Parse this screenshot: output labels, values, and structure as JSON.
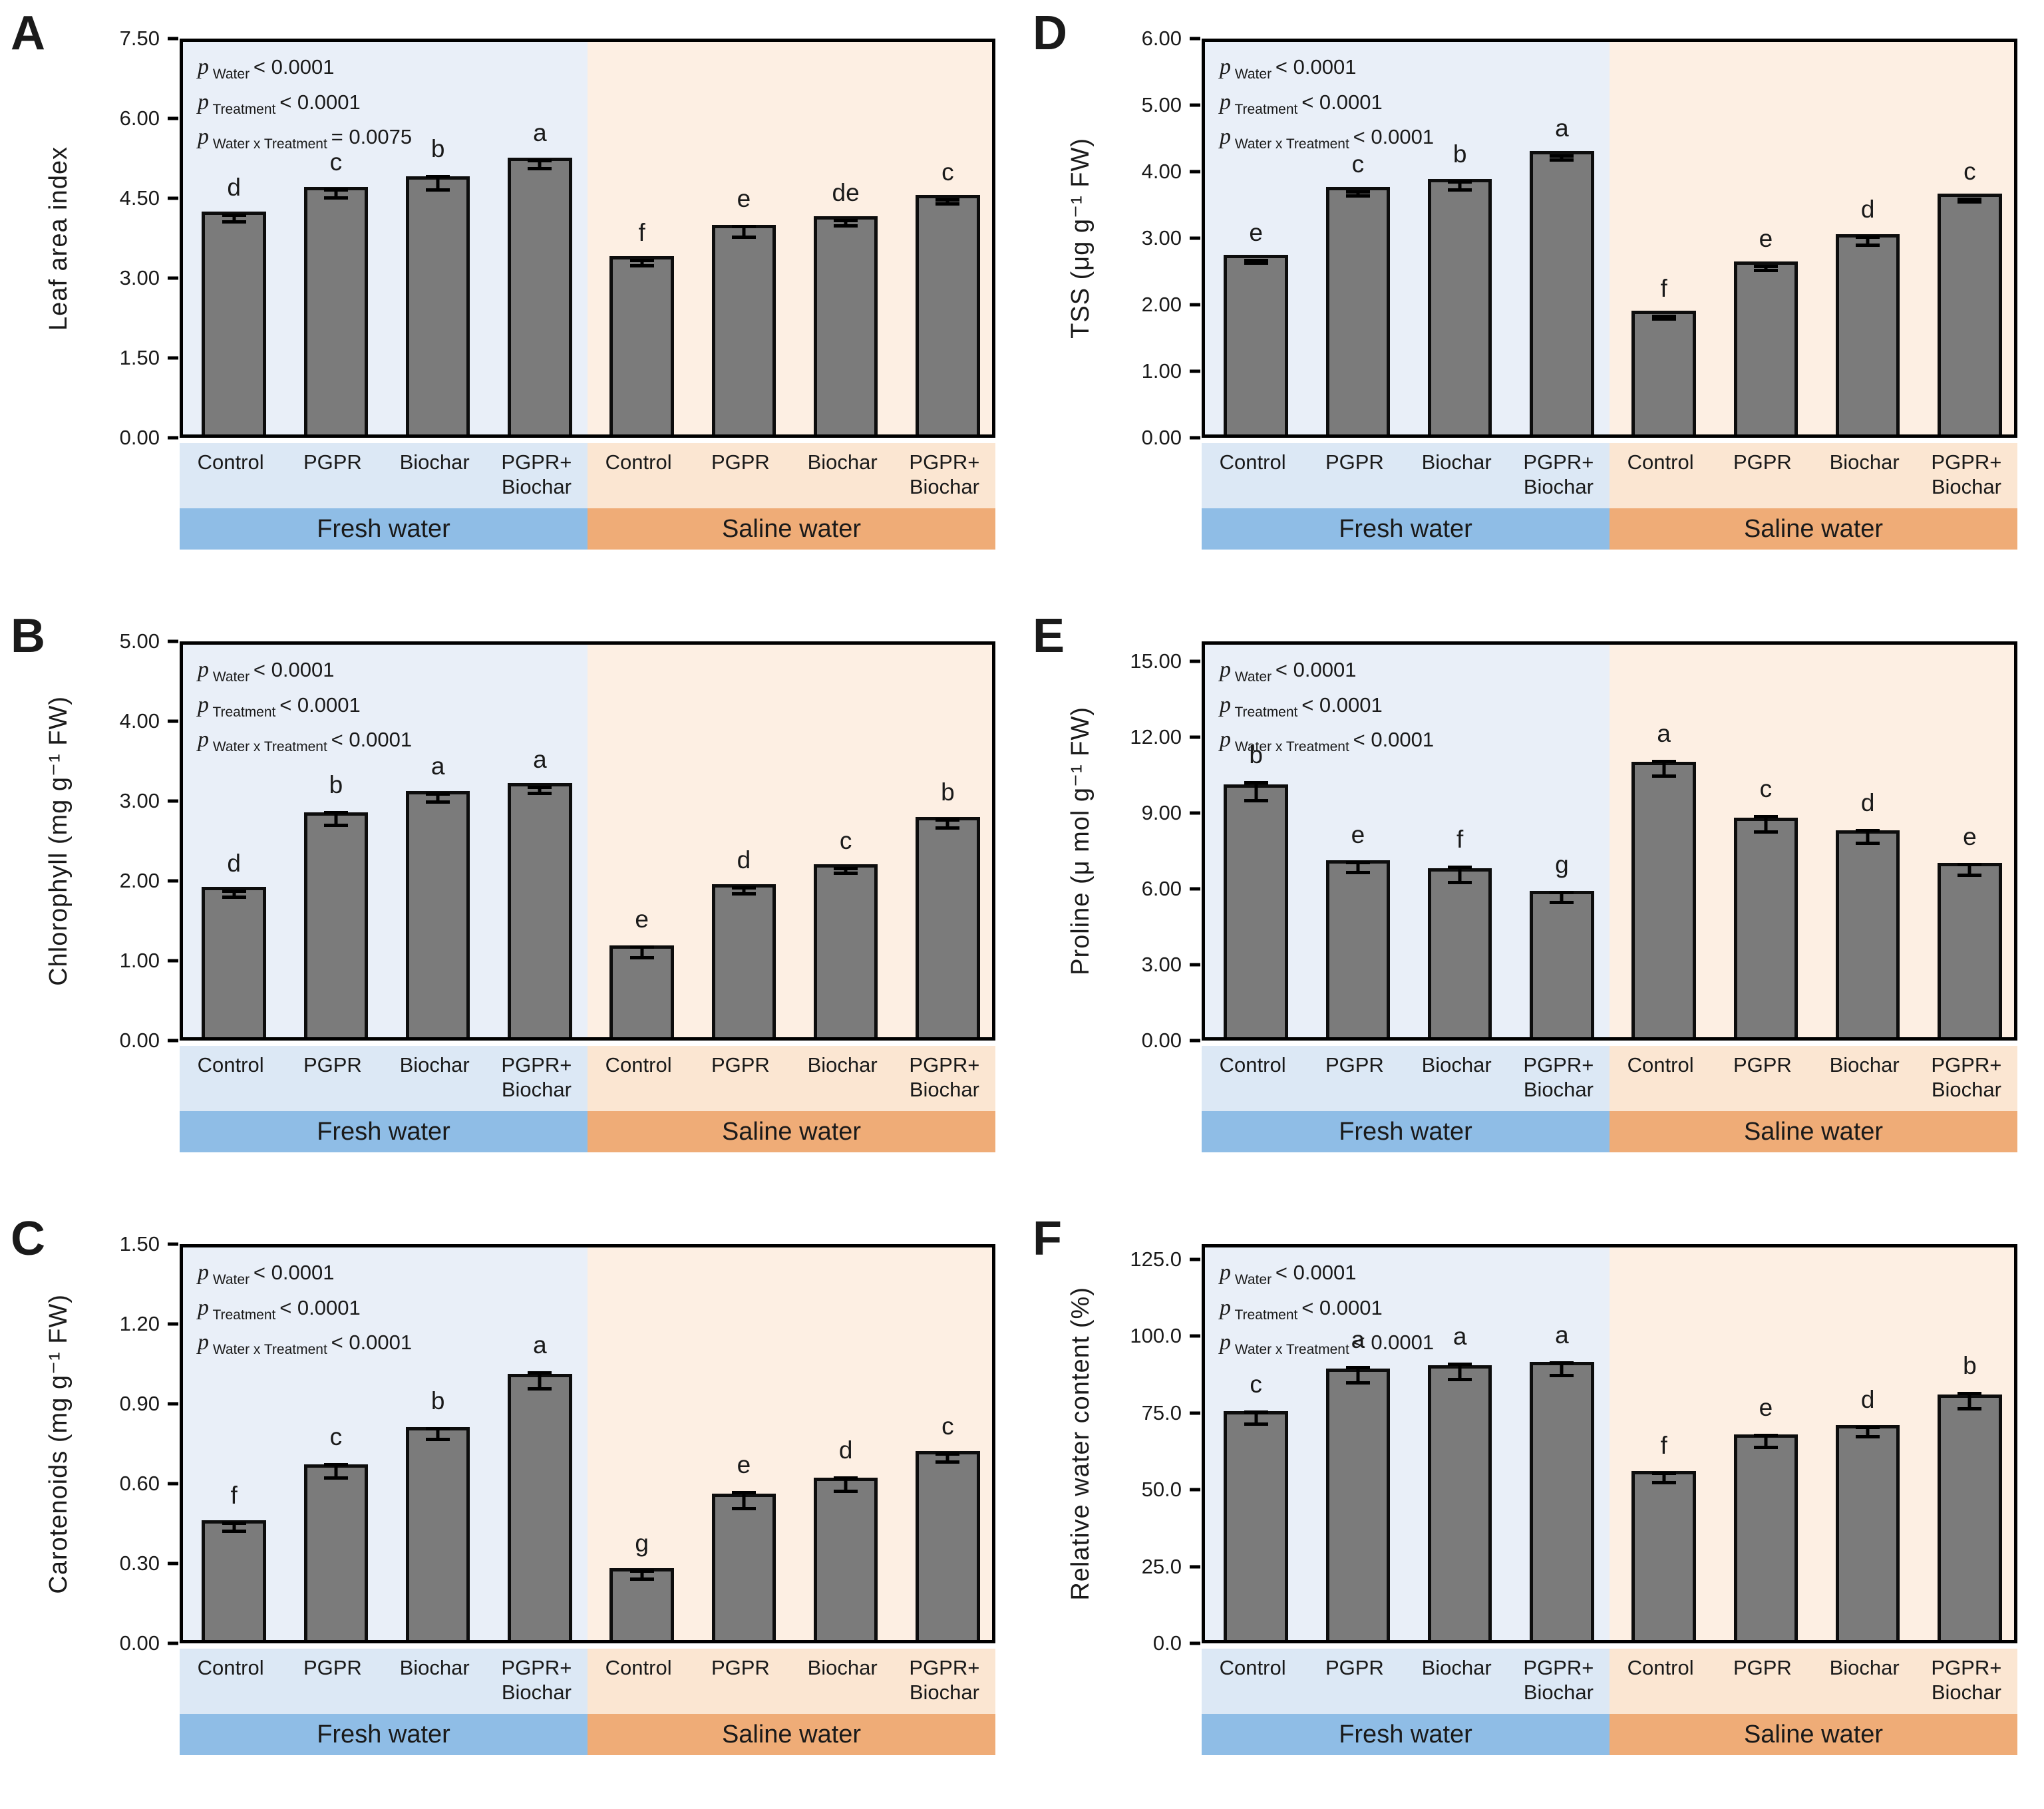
{
  "figure": {
    "treatment_labels": [
      "Control",
      "PGPR",
      "Biochar",
      "PGPR+\nBiochar"
    ],
    "water_groups": [
      "Fresh water",
      "Saline water"
    ],
    "colors": {
      "bar_fill": "#7b7b7b",
      "bar_border": "#0d0d0d",
      "fresh_plot_bg": "#e9eff8",
      "saline_plot_bg": "#fdefe3",
      "fresh_label_strip_bg": "#dce8f5",
      "saline_label_strip_bg": "#fbe6d2",
      "fresh_band_bg": "#8fbde6",
      "saline_band_bg": "#efac77"
    }
  },
  "chart_data": [
    {
      "type": "bar",
      "panel_letter": "A",
      "ylabel": "Leaf area index",
      "ylim": [
        0,
        7.5
      ],
      "yticks": [
        "0.00",
        "1.50",
        "3.00",
        "4.50",
        "6.00",
        "7.50"
      ],
      "grid": false,
      "p_values": [
        {
          "sub": "Water",
          "rest": "< 0.0001"
        },
        {
          "sub": "Treatment",
          "rest": "< 0.0001"
        },
        {
          "sub": "Water x Treatment",
          "rest": "= 0.0075"
        }
      ],
      "groups": [
        {
          "water": "Fresh water",
          "bars": [
            {
              "treatment": "Control",
              "value": 4.19,
              "error": 0.06,
              "letter": "d"
            },
            {
              "treatment": "PGPR",
              "value": 4.65,
              "error": 0.08,
              "letter": "c"
            },
            {
              "treatment": "Biochar",
              "value": 4.85,
              "error": 0.12,
              "letter": "b"
            },
            {
              "treatment": "PGPR+Biochar",
              "value": 5.2,
              "error": 0.07,
              "letter": "a"
            }
          ]
        },
        {
          "water": "Saline water",
          "bars": [
            {
              "treatment": "Control",
              "value": 3.35,
              "error": 0.05,
              "letter": "f"
            },
            {
              "treatment": "PGPR",
              "value": 3.94,
              "error": 0.1,
              "letter": "e"
            },
            {
              "treatment": "Biochar",
              "value": 4.1,
              "error": 0.05,
              "letter": "de"
            },
            {
              "treatment": "PGPR+Biochar",
              "value": 4.5,
              "error": 0.04,
              "letter": "c"
            }
          ]
        }
      ]
    },
    {
      "type": "bar",
      "panel_letter": "D",
      "ylabel": "TSS (μg g⁻¹ FW)",
      "ylim": [
        0,
        6
      ],
      "yticks": [
        "0.00",
        "1.00",
        "2.00",
        "3.00",
        "4.00",
        "5.00",
        "6.00"
      ],
      "grid": false,
      "p_values": [
        {
          "sub": "Water",
          "rest": "< 0.0001"
        },
        {
          "sub": "Treatment",
          "rest": "< 0.0001"
        },
        {
          "sub": "Water x Treatment",
          "rest": "< 0.0001"
        }
      ],
      "groups": [
        {
          "water": "Fresh water",
          "bars": [
            {
              "treatment": "Control",
              "value": 2.7,
              "error": 0.02,
              "letter": "e"
            },
            {
              "treatment": "PGPR",
              "value": 3.72,
              "error": 0.03,
              "letter": "c"
            },
            {
              "treatment": "Biochar",
              "value": 3.84,
              "error": 0.06,
              "letter": "b"
            },
            {
              "treatment": "PGPR+Biochar",
              "value": 4.26,
              "error": 0.03,
              "letter": "a"
            }
          ]
        },
        {
          "water": "Saline water",
          "bars": [
            {
              "treatment": "Control",
              "value": 1.86,
              "error": 0.02,
              "letter": "f"
            },
            {
              "treatment": "PGPR",
              "value": 2.6,
              "error": 0.03,
              "letter": "e"
            },
            {
              "treatment": "Biochar",
              "value": 3.01,
              "error": 0.06,
              "letter": "d"
            },
            {
              "treatment": "PGPR+Biochar",
              "value": 3.62,
              "error": 0.02,
              "letter": "c"
            }
          ]
        }
      ]
    },
    {
      "type": "bar",
      "panel_letter": "B",
      "ylabel": "Chlorophyll (mg g⁻¹ FW)",
      "ylim": [
        0,
        5
      ],
      "yticks": [
        "0.00",
        "1.00",
        "2.00",
        "3.00",
        "4.00",
        "5.00"
      ],
      "grid": false,
      "p_values": [
        {
          "sub": "Water",
          "rest": "< 0.0001"
        },
        {
          "sub": "Treatment",
          "rest": "< 0.0001"
        },
        {
          "sub": "Water x Treatment",
          "rest": "< 0.0001"
        }
      ],
      "groups": [
        {
          "water": "Fresh water",
          "bars": [
            {
              "treatment": "Control",
              "value": 1.88,
              "error": 0.04,
              "letter": "d"
            },
            {
              "treatment": "PGPR",
              "value": 2.82,
              "error": 0.08,
              "letter": "b"
            },
            {
              "treatment": "Biochar",
              "value": 3.08,
              "error": 0.05,
              "letter": "a"
            },
            {
              "treatment": "PGPR+Biochar",
              "value": 3.18,
              "error": 0.04,
              "letter": "a"
            }
          ]
        },
        {
          "water": "Saline water",
          "bars": [
            {
              "treatment": "Control",
              "value": 1.15,
              "error": 0.07,
              "letter": "e"
            },
            {
              "treatment": "PGPR",
              "value": 1.92,
              "error": 0.04,
              "letter": "d"
            },
            {
              "treatment": "Biochar",
              "value": 2.17,
              "error": 0.03,
              "letter": "c"
            },
            {
              "treatment": "PGPR+Biochar",
              "value": 2.76,
              "error": 0.05,
              "letter": "b"
            }
          ]
        }
      ]
    },
    {
      "type": "bar",
      "panel_letter": "E",
      "ylabel": "Proline (μ mol g⁻¹ FW)",
      "ylim": [
        0,
        15.8
      ],
      "yticks": [
        "0.00",
        "3.00",
        "6.00",
        "9.00",
        "12.00",
        "15.00"
      ],
      "grid": false,
      "p_values": [
        {
          "sub": "Water",
          "rest": "< 0.0001"
        },
        {
          "sub": "Treatment",
          "rest": "< 0.0001"
        },
        {
          "sub": "Water x Treatment",
          "rest": "< 0.0001"
        }
      ],
      "groups": [
        {
          "water": "Fresh water",
          "bars": [
            {
              "treatment": "Control",
              "value": 10.0,
              "error": 0.35,
              "letter": "b"
            },
            {
              "treatment": "PGPR",
              "value": 7.0,
              "error": 0.2,
              "letter": "e"
            },
            {
              "treatment": "Biochar",
              "value": 6.7,
              "error": 0.3,
              "letter": "f"
            },
            {
              "treatment": "PGPR+Biochar",
              "value": 5.8,
              "error": 0.2,
              "letter": "g"
            }
          ]
        },
        {
          "water": "Saline water",
          "bars": [
            {
              "treatment": "Control",
              "value": 10.9,
              "error": 0.3,
              "letter": "a"
            },
            {
              "treatment": "PGPR",
              "value": 8.7,
              "error": 0.3,
              "letter": "c"
            },
            {
              "treatment": "Biochar",
              "value": 8.2,
              "error": 0.25,
              "letter": "d"
            },
            {
              "treatment": "PGPR+Biochar",
              "value": 6.9,
              "error": 0.2,
              "letter": "e"
            }
          ]
        }
      ]
    },
    {
      "type": "bar",
      "panel_letter": "C",
      "ylabel": "Carotenoids (mg g⁻¹ FW)",
      "ylim": [
        0,
        1.5
      ],
      "yticks": [
        "0.00",
        "0.30",
        "0.60",
        "0.90",
        "1.20",
        "1.50"
      ],
      "grid": false,
      "p_values": [
        {
          "sub": "Water",
          "rest": "< 0.0001"
        },
        {
          "sub": "Treatment",
          "rest": "< 0.0001"
        },
        {
          "sub": "Water x Treatment",
          "rest": "< 0.0001"
        }
      ],
      "groups": [
        {
          "water": "Fresh water",
          "bars": [
            {
              "treatment": "Control",
              "value": 0.45,
              "error": 0.015,
              "letter": "f"
            },
            {
              "treatment": "PGPR",
              "value": 0.66,
              "error": 0.025,
              "letter": "c"
            },
            {
              "treatment": "Biochar",
              "value": 0.8,
              "error": 0.02,
              "letter": "b"
            },
            {
              "treatment": "PGPR+Biochar",
              "value": 1.0,
              "error": 0.03,
              "letter": "a"
            }
          ]
        },
        {
          "water": "Saline water",
          "bars": [
            {
              "treatment": "Control",
              "value": 0.27,
              "error": 0.015,
              "letter": "g"
            },
            {
              "treatment": "PGPR",
              "value": 0.55,
              "error": 0.03,
              "letter": "e"
            },
            {
              "treatment": "Biochar",
              "value": 0.61,
              "error": 0.025,
              "letter": "d"
            },
            {
              "treatment": "PGPR+Biochar",
              "value": 0.71,
              "error": 0.015,
              "letter": "c"
            }
          ]
        }
      ]
    },
    {
      "type": "bar",
      "panel_letter": "F",
      "ylabel": "Relative water content (%)",
      "ylim": [
        0,
        130
      ],
      "yticks": [
        "0.0",
        "25.0",
        "50.0",
        "75.0",
        "100.0",
        "125.0"
      ],
      "grid": false,
      "p_values": [
        {
          "sub": "Water",
          "rest": "< 0.0001"
        },
        {
          "sub": "Treatment",
          "rest": "< 0.0001"
        },
        {
          "sub": "Water x Treatment",
          "rest": "< 0.0001"
        }
      ],
      "groups": [
        {
          "water": "Fresh water",
          "bars": [
            {
              "treatment": "Control",
              "value": 74.5,
              "error": 2.0,
              "letter": "c"
            },
            {
              "treatment": "PGPR",
              "value": 88.5,
              "error": 2.5,
              "letter": "a"
            },
            {
              "treatment": "Biochar",
              "value": 89.5,
              "error": 2.5,
              "letter": "a"
            },
            {
              "treatment": "PGPR+Biochar",
              "value": 90.5,
              "error": 2.0,
              "letter": "a"
            }
          ]
        },
        {
          "water": "Saline water",
          "bars": [
            {
              "treatment": "Control",
              "value": 55.0,
              "error": 1.5,
              "letter": "f"
            },
            {
              "treatment": "PGPR",
              "value": 67.0,
              "error": 2.0,
              "letter": "e"
            },
            {
              "treatment": "Biochar",
              "value": 70.0,
              "error": 1.5,
              "letter": "d"
            },
            {
              "treatment": "PGPR+Biochar",
              "value": 80.0,
              "error": 2.5,
              "letter": "b"
            }
          ]
        }
      ]
    }
  ]
}
